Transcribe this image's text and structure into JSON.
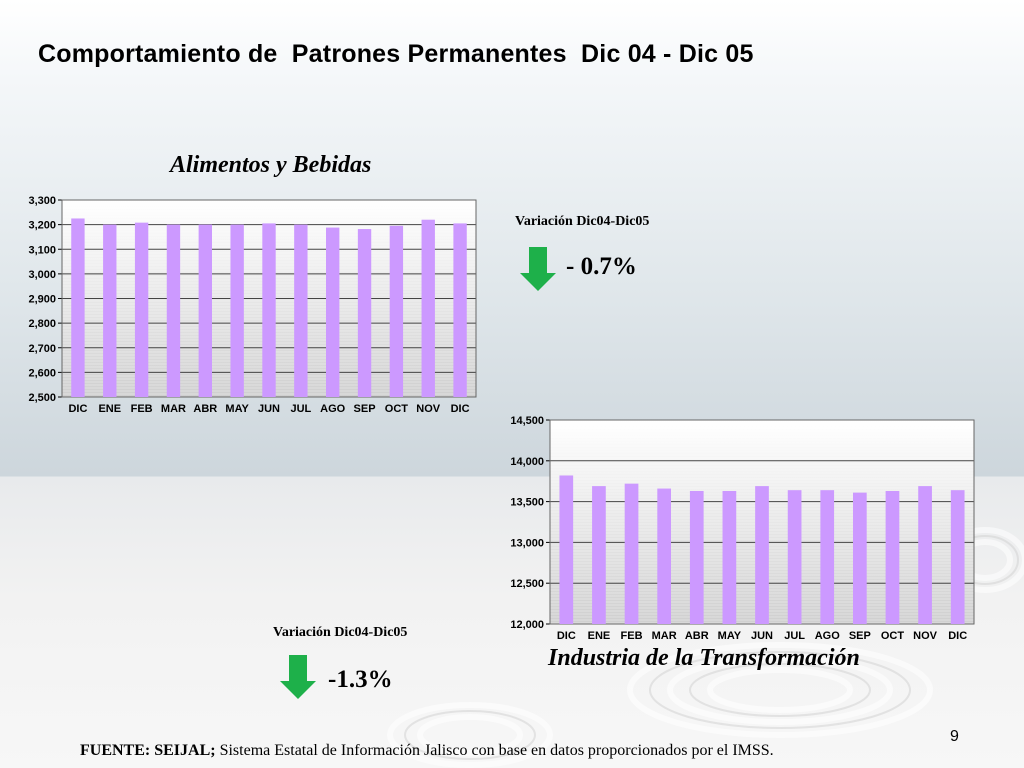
{
  "page": {
    "title": "Comportamiento de  Patrones Permanentes  Dic 04 - Dic 05",
    "page_number": "9",
    "footer_bold": "FUENTE: SEIJAL;",
    "footer_text": " Sistema Estatal de Información Jalisco con base en datos proporcionados por el IMSS."
  },
  "variations": {
    "alimentos": {
      "label": "Variación Dic04-Dic05",
      "value": "- 0.7%"
    },
    "industria": {
      "label": "Variación Dic04-Dic05",
      "value": "-1.3%"
    }
  },
  "colors": {
    "bar": "#cc99ff",
    "arrow": "#1eb04a",
    "grid": "#444444"
  },
  "chart_data": [
    {
      "type": "bar",
      "title": "Alimentos y Bebidas",
      "categories": [
        "DIC",
        "ENE",
        "FEB",
        "MAR",
        "ABR",
        "MAY",
        "JUN",
        "JUL",
        "AGO",
        "SEP",
        "OCT",
        "NOV",
        "DIC"
      ],
      "values": [
        3225,
        3200,
        3208,
        3200,
        3200,
        3200,
        3205,
        3200,
        3188,
        3182,
        3195,
        3220,
        3205
      ],
      "ylim": [
        2500,
        3300
      ],
      "yticks": [
        2500,
        2600,
        2700,
        2800,
        2900,
        3000,
        3100,
        3200,
        3300
      ],
      "ytick_labels": [
        "2,500",
        "2,600",
        "2,700",
        "2,800",
        "2,900",
        "3,000",
        "3,100",
        "3,200",
        "3,300"
      ],
      "grid": true
    },
    {
      "type": "bar",
      "title": "Industria de la Transformación",
      "categories": [
        "DIC",
        "ENE",
        "FEB",
        "MAR",
        "ABR",
        "MAY",
        "JUN",
        "JUL",
        "AGO",
        "SEP",
        "OCT",
        "NOV",
        "DIC"
      ],
      "values": [
        13820,
        13690,
        13720,
        13660,
        13630,
        13630,
        13690,
        13640,
        13640,
        13610,
        13630,
        13690,
        13640
      ],
      "ylim": [
        12000,
        14500
      ],
      "yticks": [
        12000,
        12500,
        13000,
        13500,
        14000,
        14500
      ],
      "ytick_labels": [
        "12,000",
        "12,500",
        "13,000",
        "13,500",
        "14,000",
        "14,500"
      ],
      "grid": true
    }
  ]
}
